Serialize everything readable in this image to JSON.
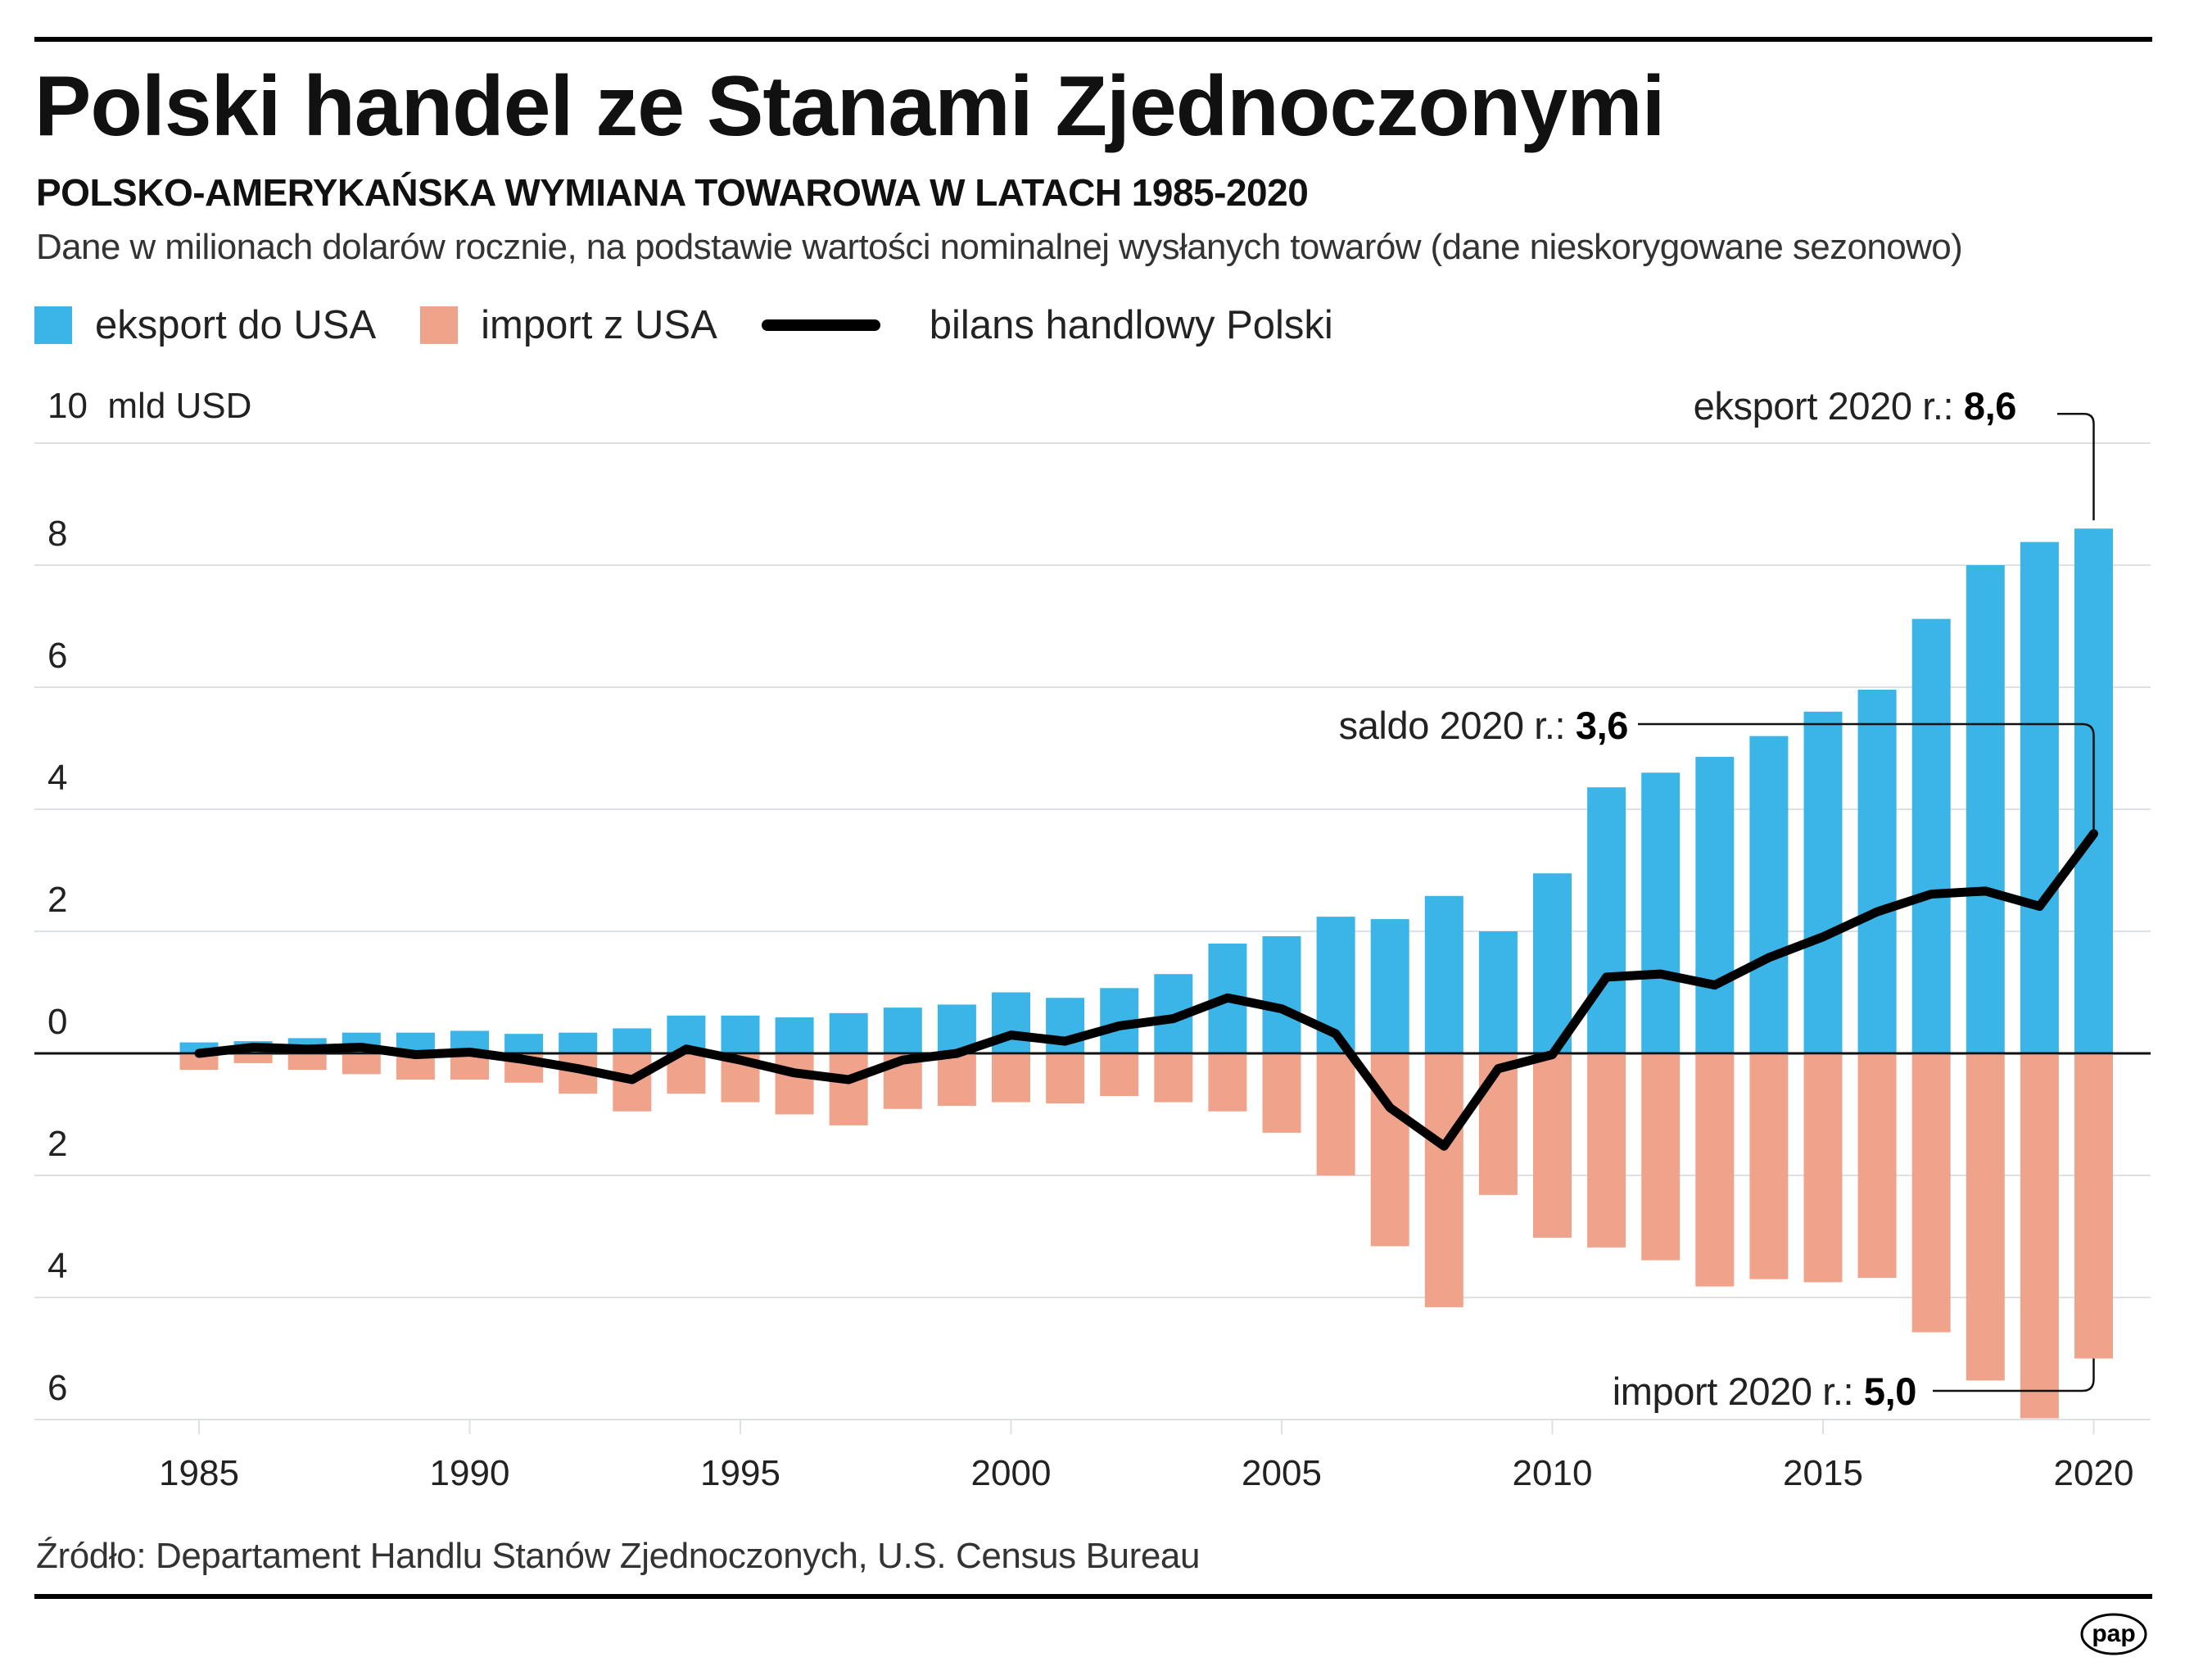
{
  "header": {
    "title": "Polski handel ze Stanami Zjednoczonymi",
    "subtitle": "POLSKO-AMERYKAŃSKA WYMIANA TOWAROWA W LATACH 1985-2020",
    "description": "Dane w milionach dolarów rocznie, na podstawie wartości nominalnej wysłanych towarów (dane nieskorygowane sezonowo)"
  },
  "legend": {
    "export_label": "eksport do USA",
    "import_label": "import z USA",
    "balance_label": "bilans handlowy Polski"
  },
  "colors": {
    "export": "#3BB5E8",
    "import": "#F0A38B",
    "balance": "#000000",
    "grid": "#DDE1E6"
  },
  "footer": {
    "source": "Źródło: Departament Handlu Stanów Zjednoczonych, U.S. Census Bureau",
    "logo": "pap"
  },
  "annotations": {
    "export_prefix": "eksport 2020 r.: ",
    "export_value": "8,6",
    "balance_prefix": "saldo 2020 r.: ",
    "balance_value": "3,6",
    "import_prefix": "import 2020 r.: ",
    "import_value": "5,0"
  },
  "chart_data": {
    "type": "bar",
    "title": "Polski handel ze Stanami Zjednoczonymi",
    "xlabel": "",
    "ylabel": "mld USD",
    "unit_label": "mld USD",
    "ylim": [
      -6,
      10
    ],
    "grid": true,
    "legend_position": "top-left",
    "y_ticks": [
      10,
      8,
      6,
      4,
      2,
      0,
      -2,
      -4,
      -6
    ],
    "y_tick_labels": [
      "10",
      "8",
      "6",
      "4",
      "2",
      "0",
      "2",
      "4",
      "6"
    ],
    "x_tick_labels": [
      "1985",
      "1990",
      "1995",
      "2000",
      "2005",
      "2010",
      "2015",
      "2020"
    ],
    "categories": [
      1985,
      1986,
      1987,
      1988,
      1989,
      1990,
      1991,
      1992,
      1993,
      1994,
      1995,
      1996,
      1997,
      1998,
      1999,
      2000,
      2001,
      2002,
      2003,
      2004,
      2005,
      2006,
      2007,
      2008,
      2009,
      2010,
      2011,
      2012,
      2013,
      2014,
      2015,
      2016,
      2017,
      2018,
      2019,
      2020
    ],
    "series": [
      {
        "name": "eksport do USA",
        "type": "bar",
        "values": [
          0.18,
          0.2,
          0.25,
          0.34,
          0.34,
          0.37,
          0.32,
          0.34,
          0.41,
          0.62,
          0.62,
          0.59,
          0.66,
          0.75,
          0.8,
          1.0,
          0.91,
          1.07,
          1.3,
          1.8,
          1.92,
          2.24,
          2.2,
          2.58,
          2.0,
          2.95,
          4.36,
          4.6,
          4.86,
          5.2,
          5.6,
          5.96,
          7.12,
          8.0,
          8.38,
          8.6
        ]
      },
      {
        "name": "import z USA",
        "type": "bar",
        "values": [
          0.27,
          0.16,
          0.27,
          0.34,
          0.43,
          0.43,
          0.48,
          0.66,
          0.95,
          0.66,
          0.8,
          1.0,
          1.18,
          0.91,
          0.86,
          0.8,
          0.82,
          0.7,
          0.8,
          0.95,
          1.3,
          2.0,
          3.16,
          4.16,
          2.32,
          3.02,
          3.18,
          3.39,
          3.82,
          3.7,
          3.75,
          3.68,
          4.57,
          5.36,
          5.98,
          5.0
        ]
      },
      {
        "name": "bilans handlowy Polski",
        "type": "line",
        "values": [
          0.0,
          0.1,
          0.07,
          0.1,
          -0.02,
          0.02,
          -0.1,
          -0.25,
          -0.43,
          0.07,
          -0.11,
          -0.32,
          -0.43,
          -0.11,
          0.0,
          0.3,
          0.2,
          0.45,
          0.57,
          0.91,
          0.73,
          0.32,
          -0.89,
          -1.52,
          -0.25,
          -0.02,
          1.25,
          1.3,
          1.12,
          1.57,
          1.91,
          2.32,
          2.61,
          2.66,
          2.41,
          3.6
        ]
      }
    ],
    "annotations": [
      {
        "text": "eksport 2020 r.: 8,6",
        "year": 2020,
        "value": 8.6
      },
      {
        "text": "saldo 2020 r.: 3,6",
        "year": 2020,
        "value": 3.6
      },
      {
        "text": "import 2020 r.: 5,0",
        "year": 2020,
        "value": -5.0
      }
    ]
  }
}
